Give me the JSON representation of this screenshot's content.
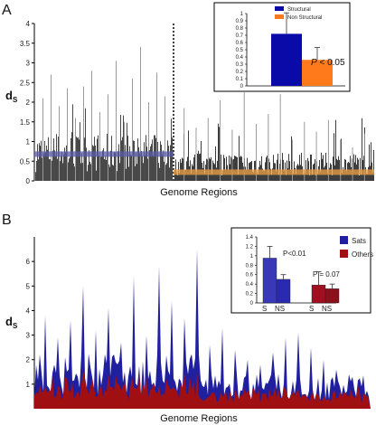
{
  "chart_data": [
    {
      "panel": "A",
      "type": "bar",
      "ylabel": "d",
      "ylabel_sub": "S",
      "xlabel": "Genome Regions",
      "ylim": [
        0,
        4
      ],
      "yticks": [
        "0",
        "0.5",
        "1",
        "1.5",
        "2",
        "2.5",
        "3",
        "3.5",
        "4"
      ],
      "regions": [
        {
          "name": "Structural",
          "color": "#2a2a2a",
          "mean": 0.68,
          "mean_color": "#5a5aa8"
        },
        {
          "name": "Non Structural",
          "color": "#1c1c1c",
          "mean": 0.22,
          "mean_color": "#e39a45"
        }
      ],
      "peaks_structural": [
        2.1,
        2.7,
        1.9,
        2.35,
        1.6,
        2.4,
        2.8,
        1.75,
        2.2,
        3.05,
        1.5,
        2.6,
        3.4,
        2.0,
        2.75,
        2.15
      ],
      "peaks_nonstructural": [
        1.85,
        1.35,
        1.6,
        2.05,
        1.3,
        2.25,
        1.45,
        1.7,
        2.2,
        1.05,
        1.5,
        1.25,
        1.55,
        1.05,
        0.85,
        1.2
      ],
      "inset": {
        "type": "bar",
        "ylim": [
          0,
          1
        ],
        "yticks": [
          "0",
          "0.1",
          "0.2",
          "0.3",
          "0.4",
          "0.5",
          "0.6",
          "0.7",
          "0.8",
          "0.9",
          "1"
        ],
        "categories": [
          "Structural",
          "Non Structural"
        ],
        "values": [
          0.72,
          0.36
        ],
        "errors": [
          0.29,
          0.17
        ],
        "colors": [
          "#0a0aa8",
          "#ff7a1a"
        ],
        "annotation_label": "P",
        "annotation_value": " < 0.05"
      }
    },
    {
      "panel": "B",
      "type": "area",
      "ylabel": "d",
      "ylabel_sub": "S",
      "xlabel": "Genome Regions",
      "ylim": [
        0,
        7
      ],
      "yticks": [
        "1",
        "2",
        "3",
        "4",
        "5",
        "6"
      ],
      "series": [
        {
          "name": "Sats",
          "color": "#1f1fa0"
        },
        {
          "name": "Others",
          "color": "#a00f12"
        }
      ],
      "peaks_sats": [
        3.8,
        2.9,
        3.6,
        5.0,
        3.2,
        4.1,
        2.7,
        5.4,
        3.0,
        5.8,
        4.4,
        3.7,
        6.5,
        2.6,
        3.3,
        2.4,
        2.0,
        1.8,
        2.3,
        2.9,
        3.1,
        2.5,
        2.0,
        1.6,
        1.4
      ],
      "inset": {
        "type": "bar",
        "ylim": [
          0,
          1.4
        ],
        "yticks": [
          "0",
          "0.2",
          "0.4",
          "0.6",
          "0.8",
          "1",
          "1.2",
          "1.4"
        ],
        "groups": [
          {
            "categories": [
              "S",
              "NS"
            ],
            "values": [
              0.95,
              0.5
            ],
            "errors": [
              0.25,
              0.1
            ],
            "colors": [
              "#3838b8",
              "#2a2ab0"
            ]
          },
          {
            "categories": [
              "S",
              "NS"
            ],
            "values": [
              0.38,
              0.3
            ],
            "errors": [
              0.28,
              0.1
            ],
            "colors": [
              "#a01020",
              "#8c0f1c"
            ]
          }
        ],
        "annotations": [
          "P<0.01",
          "P = 0.07"
        ]
      }
    }
  ]
}
